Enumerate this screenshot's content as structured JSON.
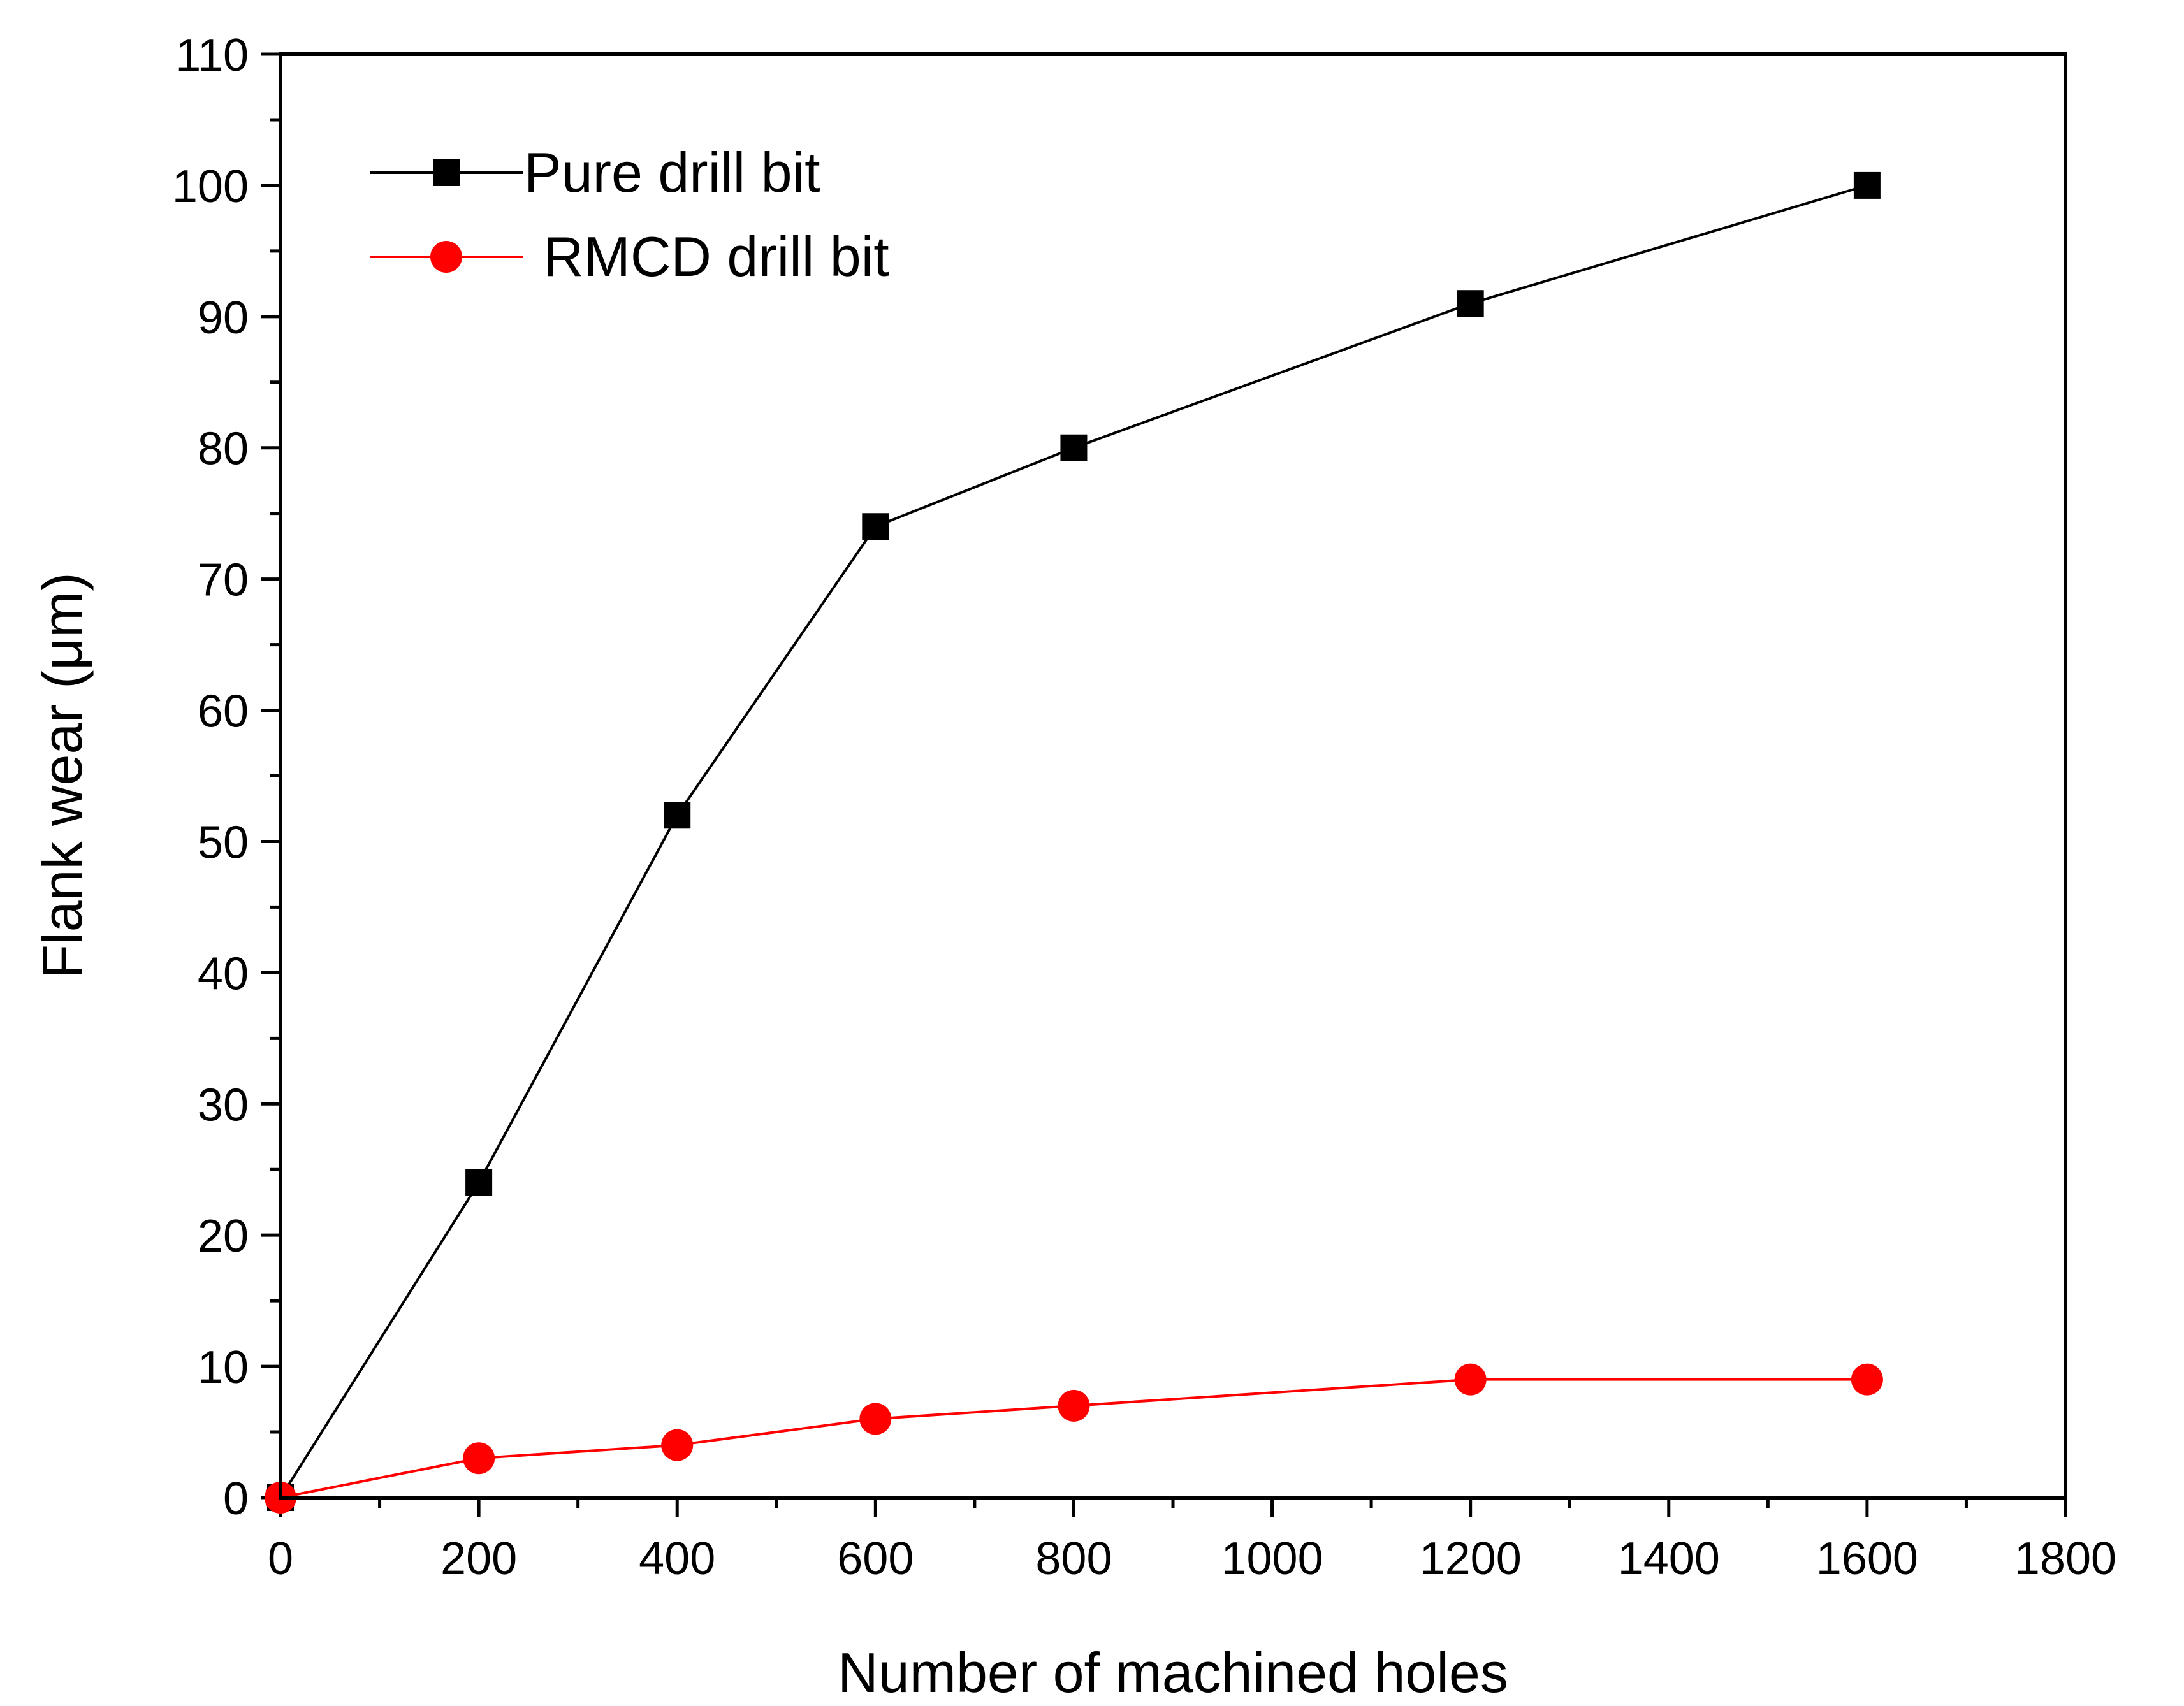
{
  "chart_data": {
    "type": "line",
    "title": "",
    "xlabel": "Number of machined holes",
    "ylabel": "Flank wear (μm)",
    "xlim": [
      0,
      1800
    ],
    "ylim": [
      0,
      110
    ],
    "x_ticks": [
      0,
      200,
      400,
      600,
      800,
      1000,
      1200,
      1400,
      1600,
      1800
    ],
    "y_ticks": [
      0,
      10,
      20,
      30,
      40,
      50,
      60,
      70,
      80,
      90,
      100,
      110
    ],
    "x_minor_step": 100,
    "y_minor_step": 5,
    "grid": false,
    "legend_position": "top-left",
    "series": [
      {
        "name": "Pure drill bit",
        "color": "#000000",
        "marker": "square",
        "x": [
          0,
          200,
          400,
          600,
          800,
          1200,
          1600
        ],
        "y": [
          0,
          24,
          52,
          74,
          80,
          91,
          100
        ]
      },
      {
        "name": "RMCD drill bit",
        "color": "#ff0000",
        "marker": "circle",
        "x": [
          0,
          200,
          400,
          600,
          800,
          1200,
          1600
        ],
        "y": [
          0,
          3,
          4,
          6,
          7,
          9,
          9
        ]
      }
    ]
  }
}
